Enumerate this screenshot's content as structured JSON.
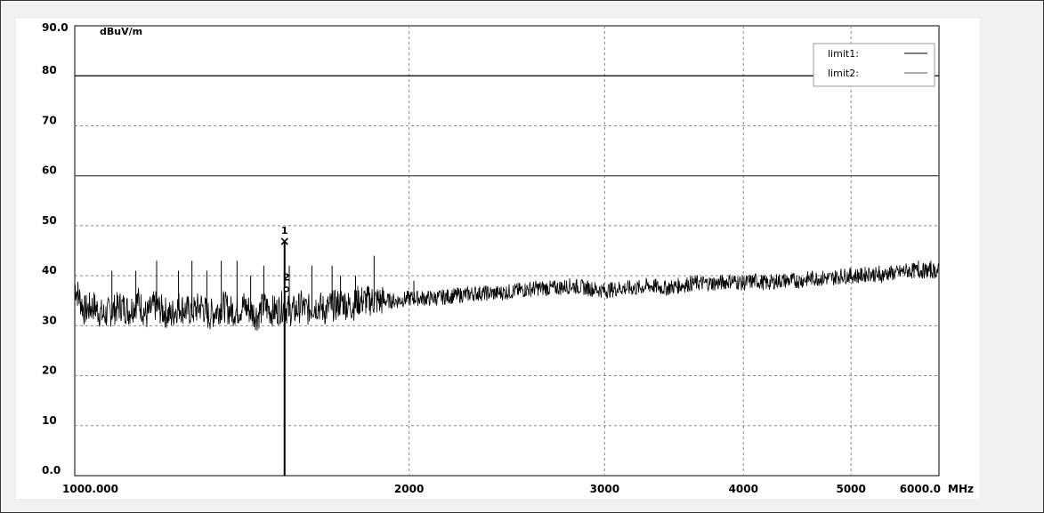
{
  "chart_data": {
    "type": "line",
    "y_unit": "dBuV/m",
    "x_unit": "MHz",
    "x_scale": "log",
    "xlim": [
      1000,
      6000
    ],
    "ylim": [
      0,
      90
    ],
    "y_ticks": [
      {
        "value": 90,
        "label": "90.0"
      },
      {
        "value": 80,
        "label": "80"
      },
      {
        "value": 70,
        "label": "70"
      },
      {
        "value": 60,
        "label": "60"
      },
      {
        "value": 50,
        "label": "50"
      },
      {
        "value": 40,
        "label": "40"
      },
      {
        "value": 30,
        "label": "30"
      },
      {
        "value": 20,
        "label": "20"
      },
      {
        "value": 10,
        "label": "10"
      },
      {
        "value": 0,
        "label": "0.0"
      }
    ],
    "x_ticks": [
      {
        "value": 1000,
        "label": "1000.000"
      },
      {
        "value": 2000,
        "label": "2000"
      },
      {
        "value": 3000,
        "label": "3000"
      },
      {
        "value": 4000,
        "label": "4000"
      },
      {
        "value": 5000,
        "label": "5000"
      },
      {
        "value": 6000,
        "label": "6000.0"
      }
    ],
    "limits": [
      {
        "name": "limit1:",
        "value": 80,
        "color": "#000000"
      },
      {
        "name": "limit2:",
        "value": 60,
        "color": "#555555"
      }
    ],
    "trace": {
      "color": "#000000",
      "x": [
        1000,
        1020,
        1040,
        1060,
        1080,
        1100,
        1120,
        1140,
        1160,
        1180,
        1200,
        1220,
        1240,
        1260,
        1280,
        1300,
        1320,
        1340,
        1360,
        1380,
        1400,
        1420,
        1440,
        1460,
        1480,
        1500,
        1520,
        1540,
        1560,
        1580,
        1600,
        1620,
        1640,
        1660,
        1680,
        1700,
        1720,
        1740,
        1760,
        1780,
        1800,
        1850,
        1900,
        1950,
        2000,
        2100,
        2200,
        2300,
        2400,
        2500,
        2600,
        2700,
        2800,
        2900,
        3000,
        3100,
        3200,
        3300,
        3400,
        3500,
        3600,
        3700,
        3800,
        3900,
        4000,
        4100,
        4200,
        4300,
        4400,
        4500,
        4600,
        4700,
        4800,
        4900,
        5000,
        5100,
        5200,
        5300,
        5400,
        5500,
        5600,
        5700,
        5800,
        5900,
        6000
      ],
      "y": [
        38,
        33,
        34,
        32,
        33,
        34,
        33,
        35,
        32,
        34,
        33,
        32,
        34,
        33,
        33,
        34,
        32,
        33,
        34,
        33,
        33,
        34,
        33,
        32,
        34,
        33,
        33,
        34,
        33,
        33,
        34,
        33,
        34,
        34,
        33,
        34,
        34,
        35,
        34,
        34,
        35,
        35,
        35,
        35,
        35.5,
        35.5,
        36,
        36.5,
        36.5,
        37,
        37.5,
        37.5,
        38,
        37.5,
        37,
        37.5,
        37.5,
        38,
        37.5,
        38,
        38.5,
        38.5,
        38.5,
        39,
        38.5,
        39,
        38.5,
        39,
        39,
        39,
        39.5,
        39.5,
        39.5,
        40,
        40,
        40,
        40.5,
        40,
        40.5,
        40.5,
        41,
        41,
        41,
        41,
        41
      ]
    },
    "spikes": [
      {
        "x": 1000,
        "y": 46
      },
      {
        "x": 1080,
        "y": 41
      },
      {
        "x": 1135,
        "y": 41
      },
      {
        "x": 1185,
        "y": 43
      },
      {
        "x": 1240,
        "y": 41
      },
      {
        "x": 1275,
        "y": 43
      },
      {
        "x": 1315,
        "y": 41
      },
      {
        "x": 1355,
        "y": 43
      },
      {
        "x": 1400,
        "y": 43
      },
      {
        "x": 1440,
        "y": 40
      },
      {
        "x": 1480,
        "y": 42
      },
      {
        "x": 1560,
        "y": 42
      },
      {
        "x": 1635,
        "y": 42
      },
      {
        "x": 1705,
        "y": 42
      },
      {
        "x": 1735,
        "y": 40
      },
      {
        "x": 1790,
        "y": 40
      },
      {
        "x": 1860,
        "y": 44
      },
      {
        "x": 2020,
        "y": 39
      },
      {
        "x": 5300,
        "y": 42
      },
      {
        "x": 5750,
        "y": 43
      },
      {
        "x": 5900,
        "y": 43
      }
    ],
    "markers": [
      {
        "label": "1",
        "x": 1545,
        "y": 47,
        "symbol": "×"
      },
      {
        "label": "2",
        "x": 1545,
        "y": 38,
        "symbol": "o"
      }
    ],
    "marker_line_x": 1545,
    "legend_position": "top-right",
    "grid": true
  }
}
